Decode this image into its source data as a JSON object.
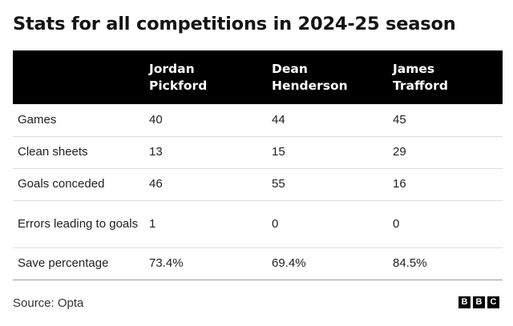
{
  "title": "Stats for all competitions in 2024-25 season",
  "table": {
    "headers": [
      {
        "line1": "Jordan",
        "line2": "Pickford"
      },
      {
        "line1": "Dean",
        "line2": "Henderson"
      },
      {
        "line1": "James",
        "line2": "Trafford"
      }
    ],
    "rows": [
      {
        "label": "Games",
        "values": [
          "40",
          "44",
          "45"
        ]
      },
      {
        "label": "Clean sheets",
        "values": [
          "13",
          "15",
          "29"
        ]
      },
      {
        "label": "Goals conceded",
        "values": [
          "46",
          "55",
          "16"
        ]
      },
      {
        "label": "Errors leading to goals",
        "values": [
          "1",
          "0",
          "0"
        ]
      },
      {
        "label": "Save percentage",
        "values": [
          "73.4%",
          "69.4%",
          "84.5%"
        ]
      }
    ]
  },
  "footer": {
    "source": "Source: Opta",
    "logo_letters": [
      "B",
      "B",
      "C"
    ]
  }
}
